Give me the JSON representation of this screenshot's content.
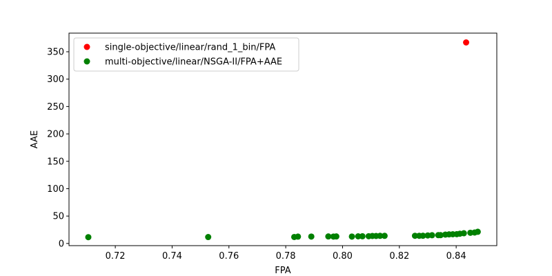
{
  "chart_data": {
    "type": "scatter",
    "xlabel": "FPA",
    "ylabel": "AAE",
    "xlim": [
      0.7037,
      0.8543
    ],
    "ylim": [
      -4.0,
      384.0
    ],
    "xticks": [
      0.72,
      0.74,
      0.76,
      0.78,
      0.8,
      0.82,
      0.84
    ],
    "xtick_labels": [
      "0.72",
      "0.74",
      "0.76",
      "0.78",
      "0.80",
      "0.82",
      "0.84"
    ],
    "yticks": [
      0,
      50,
      100,
      150,
      200,
      250,
      300,
      350
    ],
    "ytick_labels": [
      "0",
      "50",
      "100",
      "150",
      "200",
      "250",
      "300",
      "350"
    ],
    "grid": false,
    "legend_position": "upper-left",
    "series": [
      {
        "name": "single-objective/linear/rand_1_bin/FPA",
        "color": "#ff0000",
        "points": [
          {
            "x": 0.8435,
            "y": 367.0
          }
        ]
      },
      {
        "name": "multi-objective/linear/NSGA-II/FPA+AAE",
        "color": "#008000",
        "points": [
          {
            "x": 0.7105,
            "y": 11.5
          },
          {
            "x": 0.7527,
            "y": 11.7
          },
          {
            "x": 0.783,
            "y": 11.8
          },
          {
            "x": 0.7843,
            "y": 12.5
          },
          {
            "x": 0.789,
            "y": 12.6
          },
          {
            "x": 0.795,
            "y": 12.8
          },
          {
            "x": 0.7968,
            "y": 12.6
          },
          {
            "x": 0.7978,
            "y": 12.8
          },
          {
            "x": 0.8033,
            "y": 12.6
          },
          {
            "x": 0.8055,
            "y": 13.0
          },
          {
            "x": 0.807,
            "y": 13.1
          },
          {
            "x": 0.8092,
            "y": 13.2
          },
          {
            "x": 0.8105,
            "y": 13.7
          },
          {
            "x": 0.8118,
            "y": 13.7
          },
          {
            "x": 0.8132,
            "y": 13.9
          },
          {
            "x": 0.8148,
            "y": 13.9
          },
          {
            "x": 0.8255,
            "y": 14.0
          },
          {
            "x": 0.827,
            "y": 14.0
          },
          {
            "x": 0.8283,
            "y": 14.1
          },
          {
            "x": 0.83,
            "y": 14.6
          },
          {
            "x": 0.8315,
            "y": 15.0
          },
          {
            "x": 0.8337,
            "y": 15.2
          },
          {
            "x": 0.8345,
            "y": 15.2
          },
          {
            "x": 0.8362,
            "y": 16.2
          },
          {
            "x": 0.8375,
            "y": 16.6
          },
          {
            "x": 0.8388,
            "y": 16.8
          },
          {
            "x": 0.8402,
            "y": 17.0
          },
          {
            "x": 0.8413,
            "y": 17.8
          },
          {
            "x": 0.8427,
            "y": 18.6
          },
          {
            "x": 0.845,
            "y": 19.5
          },
          {
            "x": 0.8465,
            "y": 20.0
          },
          {
            "x": 0.8476,
            "y": 21.3
          }
        ]
      }
    ]
  }
}
